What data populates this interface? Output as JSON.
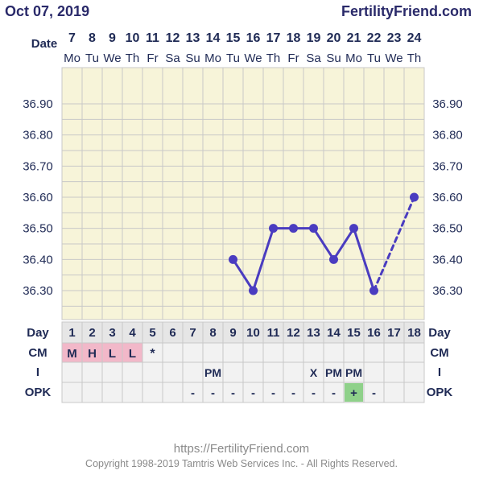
{
  "header": {
    "date": "Oct 07, 2019",
    "site": "FertilityFriend.com"
  },
  "row_labels": {
    "date": "Date",
    "day": "Day",
    "cm": "CM",
    "i": "I",
    "opk": "OPK"
  },
  "dates": [
    "7",
    "8",
    "9",
    "10",
    "11",
    "12",
    "13",
    "14",
    "15",
    "16",
    "17",
    "18",
    "19",
    "20",
    "21",
    "22",
    "23",
    "24"
  ],
  "weekdays": [
    "Mo",
    "Tu",
    "We",
    "Th",
    "Fr",
    "Sa",
    "Su",
    "Mo",
    "Tu",
    "We",
    "Th",
    "Fr",
    "Sa",
    "Su",
    "Mo",
    "Tu",
    "We",
    "Th"
  ],
  "cycle_days": [
    "1",
    "2",
    "3",
    "4",
    "5",
    "6",
    "7",
    "8",
    "9",
    "10",
    "11",
    "12",
    "13",
    "14",
    "15",
    "16",
    "17",
    "18"
  ],
  "cm": [
    "M",
    "H",
    "L",
    "L",
    "*",
    "",
    "",
    "",
    "",
    "",
    "",
    "",
    "",
    "",
    "",
    "",
    "",
    ""
  ],
  "cm_highlight": [
    1,
    1,
    1,
    1,
    0,
    0,
    0,
    0,
    0,
    0,
    0,
    0,
    0,
    0,
    0,
    0,
    0,
    0
  ],
  "intercourse": [
    "",
    "",
    "",
    "",
    "",
    "",
    "",
    "PM",
    "",
    "",
    "",
    "",
    "X",
    "PM",
    "PM",
    "",
    "",
    ""
  ],
  "opk": [
    "",
    "",
    "",
    "",
    "",
    "",
    "-",
    "-",
    "-",
    "-",
    "-",
    "-",
    "-",
    "-",
    "+",
    "-",
    "",
    ""
  ],
  "opk_positive": [
    0,
    0,
    0,
    0,
    0,
    0,
    0,
    0,
    0,
    0,
    0,
    0,
    0,
    0,
    1,
    0,
    0,
    0
  ],
  "colors": {
    "grid_bg": "#f7f4d9",
    "grid_line": "#c8c8c8",
    "line": "#4a3cc0",
    "cm_highlight": "#f2b8c9",
    "opk_positive": "#8fd18a",
    "lower_bg": "#f2f2f2"
  },
  "chart_data": {
    "type": "line",
    "y_ticks": [
      "36.90",
      "36.80",
      "36.70",
      "36.60",
      "36.50",
      "36.40",
      "36.30"
    ],
    "ylim": [
      36.2,
      36.93
    ],
    "series": [
      {
        "points": [
          {
            "day": 9,
            "temp": 36.4
          },
          {
            "day": 10,
            "temp": 36.3
          },
          {
            "day": 11,
            "temp": 36.5
          },
          {
            "day": 12,
            "temp": 36.5
          },
          {
            "day": 13,
            "temp": 36.5
          },
          {
            "day": 14,
            "temp": 36.4
          },
          {
            "day": 15,
            "temp": 36.5
          },
          {
            "day": 16,
            "temp": 36.3
          },
          {
            "day": 18,
            "temp": 36.6
          }
        ]
      }
    ],
    "dashed_gap": [
      16,
      18
    ]
  },
  "footer": {
    "url": "https://FertilityFriend.com",
    "copyright": "Copyright 1998-2019 Tamtris Web Services Inc. - All Rights Reserved."
  }
}
